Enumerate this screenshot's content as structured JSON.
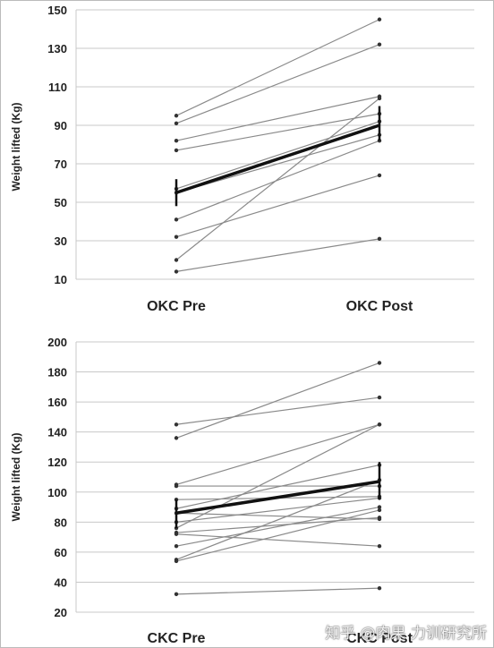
{
  "colors": {
    "grid": "#c8c8c8",
    "subject_line": "#8a8a8a",
    "mean_line": "#111111",
    "frame": "#bbbbbb"
  },
  "watermark": "知乎 @肉果 力训研究所",
  "chart_data": [
    {
      "type": "line",
      "title": "",
      "ylabel": "Weight lifted (Kg)",
      "xlabel": "",
      "categories": [
        "OKC Pre",
        "OKC Post"
      ],
      "ylim": [
        10,
        150
      ],
      "yticks": [
        10,
        30,
        50,
        70,
        90,
        110,
        130,
        150
      ],
      "grid": true,
      "legend": "none",
      "subjects": [
        [
          95,
          145
        ],
        [
          91,
          132
        ],
        [
          82,
          105
        ],
        [
          77,
          96
        ],
        [
          57,
          92
        ],
        [
          55,
          85
        ],
        [
          41,
          82
        ],
        [
          32,
          64
        ],
        [
          20,
          104
        ],
        [
          14,
          31
        ]
      ],
      "mean": {
        "values": [
          55,
          90
        ],
        "error_high": [
          62,
          100
        ],
        "error_low": [
          48,
          82
        ]
      }
    },
    {
      "type": "line",
      "title": "",
      "ylabel": "Weight lifted (Kg)",
      "xlabel": "",
      "categories": [
        "CKC Pre",
        "CKC Post"
      ],
      "ylim": [
        20,
        200
      ],
      "yticks": [
        20,
        40,
        60,
        80,
        100,
        120,
        140,
        160,
        180,
        200
      ],
      "grid": true,
      "legend": "none",
      "subjects": [
        [
          145,
          163
        ],
        [
          136,
          186
        ],
        [
          105,
          145
        ],
        [
          104,
          104
        ],
        [
          95,
          97
        ],
        [
          89,
          118
        ],
        [
          86,
          82
        ],
        [
          80,
          96
        ],
        [
          76,
          145
        ],
        [
          73,
          83
        ],
        [
          64,
          90
        ],
        [
          55,
          108
        ],
        [
          54,
          88
        ],
        [
          72,
          64
        ],
        [
          32,
          36
        ]
      ],
      "mean": {
        "values": [
          86,
          107
        ],
        "error_high": [
          95,
          120
        ],
        "error_low": [
          76,
          95
        ]
      }
    }
  ]
}
